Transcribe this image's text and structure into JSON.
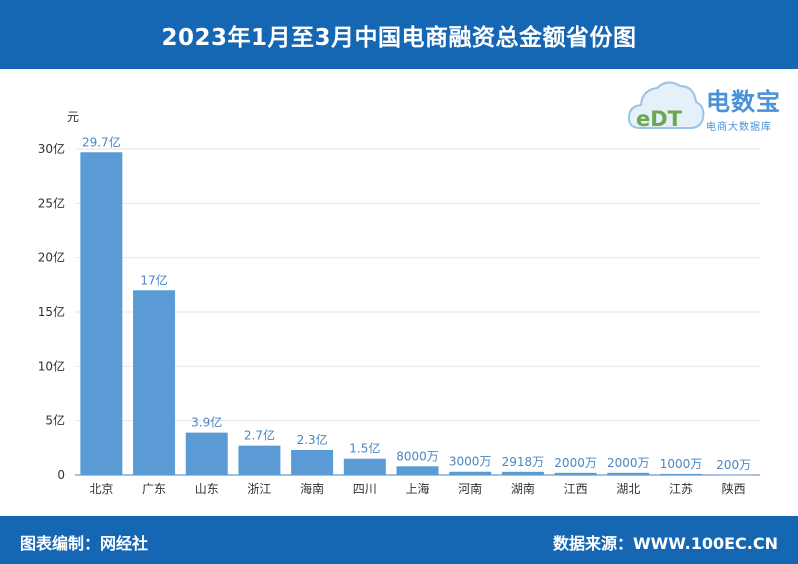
{
  "header": {
    "title": "2023年1月至3月中国电商融资总金额省份图"
  },
  "logo": {
    "mark": "eDT",
    "name": "电数宝",
    "subtitle": "电商大数据库"
  },
  "footer": {
    "left": "图表编制：网经社",
    "right": "数据来源：WWW.100EC.CN"
  },
  "colors": {
    "accent": "#1567b4",
    "bar": "#5b9bd5",
    "label": "#4a86c5"
  },
  "chart_data": {
    "type": "bar",
    "title": "2023年1月至3月中国电商融资总金额省份图",
    "ylabel": "元",
    "categories": [
      "北京",
      "广东",
      "山东",
      "浙江",
      "海南",
      "四川",
      "上海",
      "河南",
      "湖南",
      "江西",
      "湖北",
      "江苏",
      "陕西"
    ],
    "values": [
      29.7,
      17,
      3.9,
      2.7,
      2.3,
      1.5,
      0.8,
      0.3,
      0.2918,
      0.2,
      0.2,
      0.1,
      0.02
    ],
    "data_labels": [
      "29.7亿",
      "17亿",
      "3.9亿",
      "2.7亿",
      "2.3亿",
      "1.5亿",
      "8000万",
      "3000万",
      "2918万",
      "2000万",
      "2000万",
      "1000万",
      "200万"
    ],
    "yticks": [
      0,
      5,
      10,
      15,
      20,
      25,
      30
    ],
    "ytick_labels": [
      "0",
      "5亿",
      "10亿",
      "15亿",
      "20亿",
      "25亿",
      "30亿"
    ],
    "ylim": [
      0,
      30
    ],
    "grid": true,
    "legend": "none"
  }
}
